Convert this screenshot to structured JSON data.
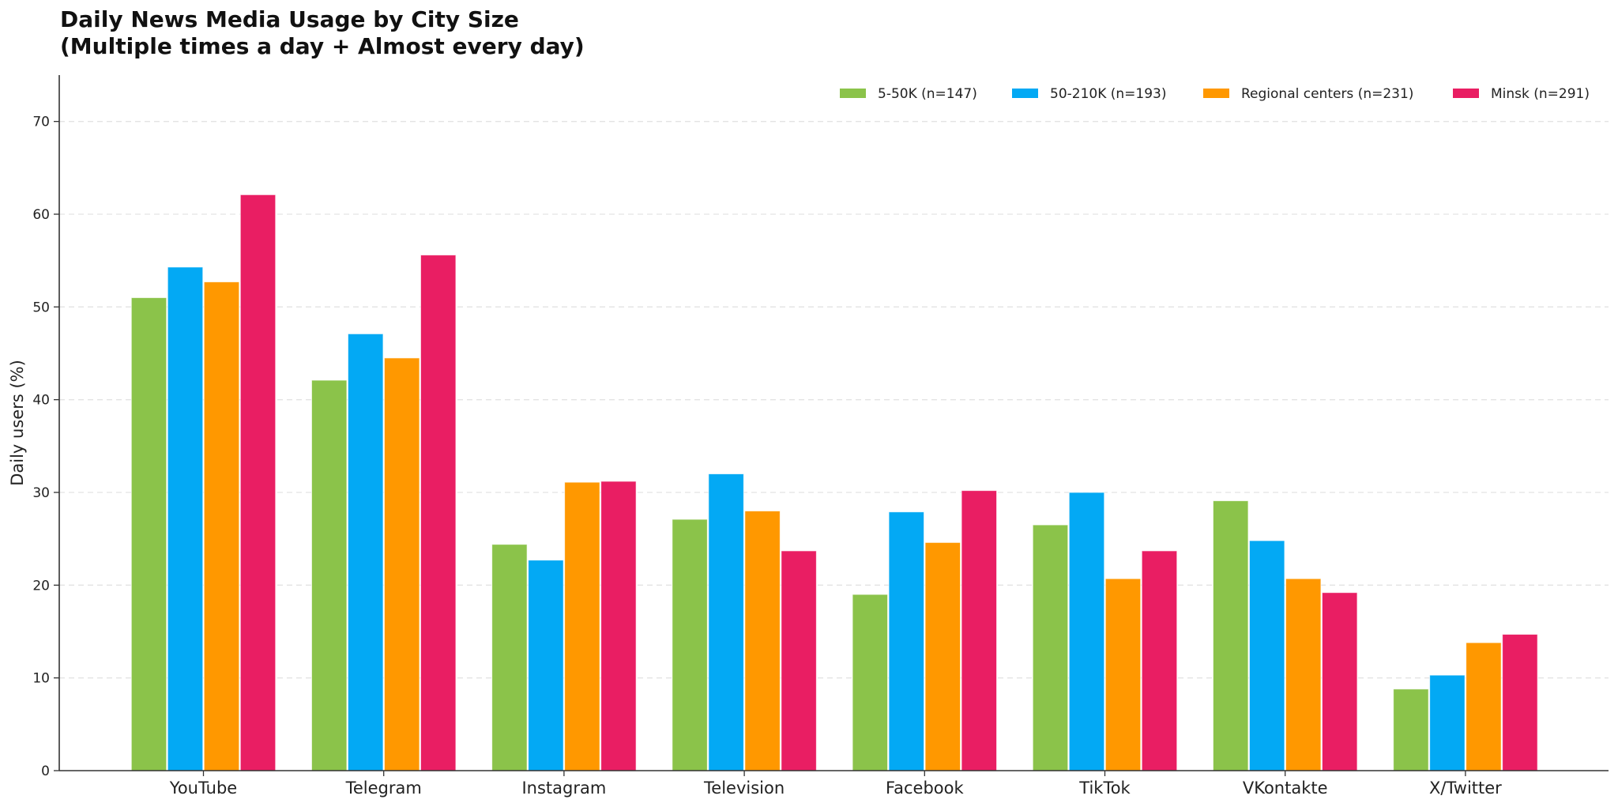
{
  "chart_data": {
    "type": "bar",
    "title": "Daily News Media Usage by City Size",
    "subtitle": "(Multiple times a day + Almost every day)",
    "xlabel": "",
    "ylabel": "Daily users (%)",
    "ylim": [
      0,
      75
    ],
    "yticks": [
      0,
      10,
      20,
      30,
      40,
      50,
      60,
      70
    ],
    "grid": true,
    "legend_position": "top-right",
    "categories": [
      "YouTube",
      "Telegram",
      "Instagram",
      "Television",
      "Facebook",
      "TikTok",
      "VKontakte",
      "X/Twitter"
    ],
    "series": [
      {
        "name": "5-50K (n=147)",
        "color": "#8BC34A",
        "values": [
          51.0,
          42.1,
          24.4,
          27.1,
          19.0,
          26.5,
          29.1,
          8.8
        ]
      },
      {
        "name": "50-210K (n=193)",
        "color": "#03A9F4",
        "values": [
          54.3,
          47.1,
          22.7,
          32.0,
          27.9,
          30.0,
          24.8,
          10.3
        ]
      },
      {
        "name": "Regional centers (n=231)",
        "color": "#FF9800",
        "values": [
          52.7,
          44.5,
          31.1,
          28.0,
          24.6,
          20.7,
          20.7,
          13.8
        ]
      },
      {
        "name": "Minsk (n=291)",
        "color": "#E91E63",
        "values": [
          62.1,
          55.6,
          31.2,
          23.7,
          30.2,
          23.7,
          19.2,
          14.7
        ]
      }
    ]
  }
}
